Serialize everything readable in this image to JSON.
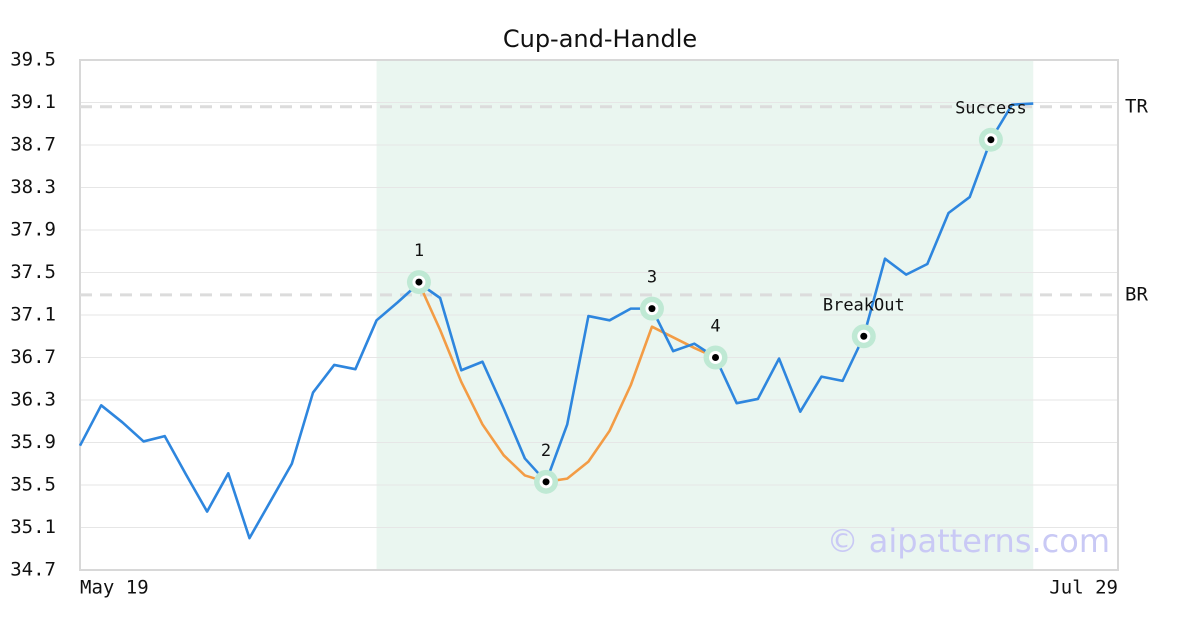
{
  "chart_data": {
    "type": "line",
    "title": "Cup-and-Handle",
    "x": [
      0,
      1,
      2,
      3,
      4,
      5,
      6,
      7,
      8,
      9,
      10,
      11,
      12,
      13,
      14,
      15,
      16,
      17,
      18,
      19,
      20,
      21,
      22,
      23,
      24,
      25,
      26,
      27,
      28,
      29,
      30,
      31,
      32,
      33,
      34,
      35,
      36,
      37,
      38,
      39,
      40,
      41,
      42,
      43,
      44,
      45
    ],
    "xlim": [
      0,
      49
    ],
    "xticks": [
      {
        "value": 0,
        "label": "May 19"
      },
      {
        "value": 49,
        "label": "Jul 29"
      }
    ],
    "ylim": [
      34.7,
      39.5
    ],
    "yticks": [
      34.7,
      35.1,
      35.5,
      35.9,
      36.3,
      36.7,
      37.1,
      37.5,
      37.9,
      38.3,
      38.7,
      39.1,
      39.5
    ],
    "grid": true,
    "series": [
      {
        "color": "#2e86de",
        "values": [
          35.87,
          36.25,
          36.09,
          35.91,
          35.96,
          35.6,
          35.25,
          35.61,
          35.0,
          35.35,
          35.7,
          36.37,
          36.63,
          36.59,
          37.05,
          37.22,
          37.4,
          37.26,
          36.58,
          36.66,
          36.22,
          35.75,
          35.53,
          36.07,
          37.09,
          37.05,
          37.16,
          37.16,
          36.76,
          36.83,
          36.7,
          36.27,
          36.31,
          36.69,
          36.19,
          36.52,
          36.48,
          36.9,
          37.63,
          37.48,
          37.58,
          38.06,
          38.21,
          38.75,
          39.08,
          39.09
        ]
      },
      {
        "color": "#f39c45",
        "values": [
          null,
          null,
          null,
          null,
          null,
          null,
          null,
          null,
          null,
          null,
          null,
          null,
          null,
          null,
          null,
          null,
          37.4,
          36.96,
          36.47,
          36.07,
          35.78,
          35.59,
          35.53,
          35.56,
          35.72,
          36.01,
          36.44,
          36.99,
          36.89,
          36.79,
          36.7,
          null,
          null,
          null,
          null,
          null,
          null,
          null,
          null,
          null,
          null,
          null,
          null,
          null,
          null,
          null
        ]
      }
    ],
    "highlight": [
      14,
      45
    ],
    "highlight_color": "#eaf6f0",
    "hlines": [
      {
        "value": 39.06,
        "label": "TR"
      },
      {
        "value": 37.29,
        "label": "BR"
      }
    ],
    "annotations": [
      {
        "x": 16,
        "y": 37.41,
        "label": "1"
      },
      {
        "x": 22,
        "y": 35.53,
        "label": "2"
      },
      {
        "x": 27,
        "y": 37.16,
        "label": "3"
      },
      {
        "x": 30,
        "y": 36.7,
        "label": "4"
      },
      {
        "x": 37,
        "y": 36.9,
        "label": "BreakOut"
      },
      {
        "x": 43,
        "y": 38.75,
        "label": "Success"
      }
    ],
    "watermark": "© aipatterns.com"
  }
}
